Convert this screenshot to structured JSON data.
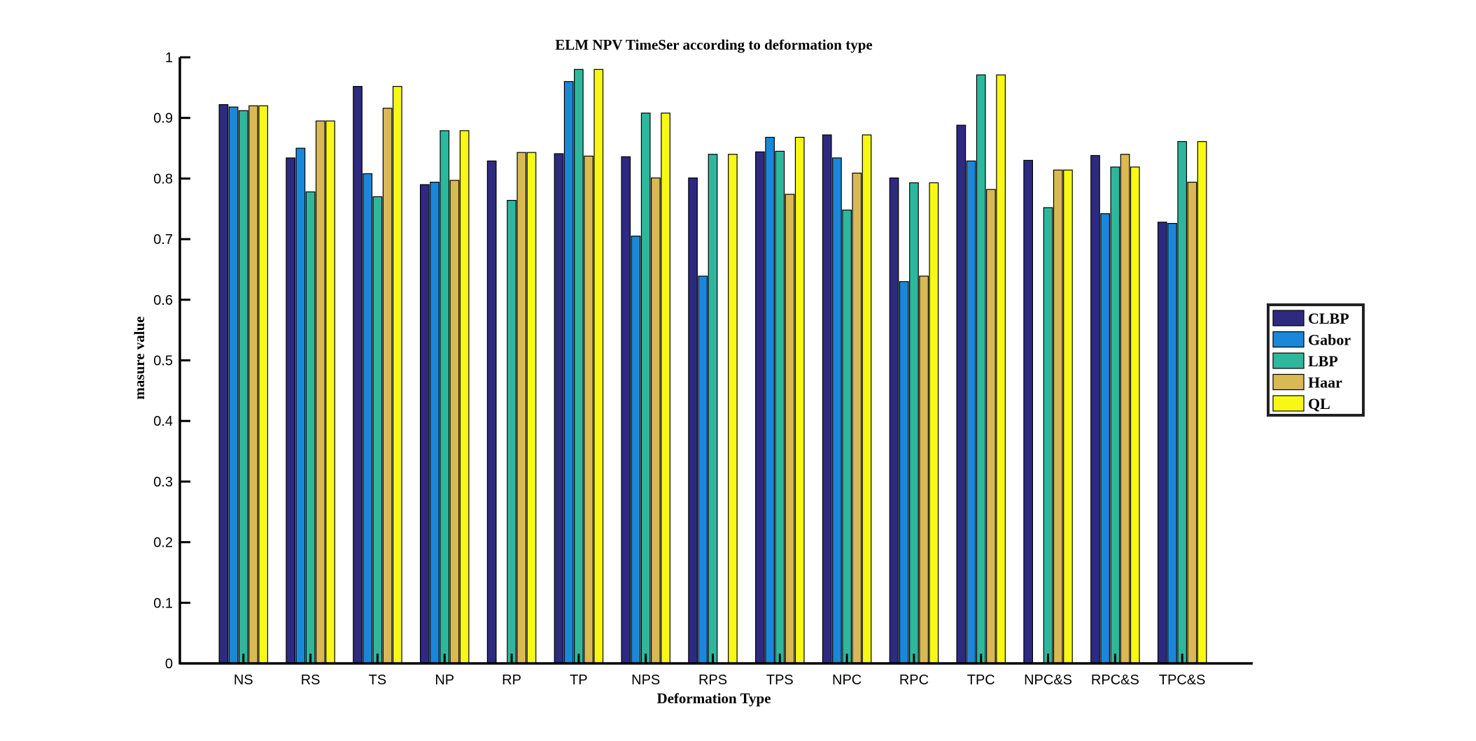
{
  "chart_data": {
    "type": "bar",
    "title": "ELM NPV TimeSer according to deformation type",
    "xlabel": "Deformation Type",
    "ylabel": "masure value",
    "ylim": [
      0,
      1
    ],
    "yticks": [
      0,
      0.1,
      0.2,
      0.3,
      0.4,
      0.5,
      0.6,
      0.7,
      0.8,
      0.9,
      1
    ],
    "ytick_labels": [
      "0",
      "0.1",
      "0.2",
      "0.3",
      "0.4",
      "0.5",
      "0.6",
      "0.7",
      "0.8",
      "0.9",
      "1"
    ],
    "grid": false,
    "legend_position": "right",
    "categories": [
      "NS",
      "RS",
      "TS",
      "NP",
      "RP",
      "TP",
      "NPS",
      "RPS",
      "TPS",
      "NPC",
      "RPC",
      "TPC",
      "NPC&S",
      "RPC&S",
      "TPC&S"
    ],
    "series": [
      {
        "name": "CLBP",
        "color": "#2e2a80",
        "values": [
          0.922,
          0.834,
          0.952,
          0.79,
          0.829,
          0.841,
          0.836,
          0.801,
          0.844,
          0.872,
          0.801,
          0.888,
          0.83,
          0.838,
          0.728
        ]
      },
      {
        "name": "Gabor",
        "color": "#1a87d8",
        "values": [
          0.918,
          0.85,
          0.808,
          0.794,
          0,
          0.96,
          0.705,
          0.639,
          0.868,
          0.834,
          0.63,
          0.829,
          0,
          0.742,
          0.726
        ]
      },
      {
        "name": "LBP",
        "color": "#2fb79d",
        "values": [
          0.912,
          0.778,
          0.77,
          0.879,
          0.764,
          0.98,
          0.908,
          0.84,
          0.845,
          0.748,
          0.793,
          0.971,
          0.752,
          0.819,
          0.861
        ]
      },
      {
        "name": "Haar",
        "color": "#d9b954",
        "values": [
          0.92,
          0.895,
          0.916,
          0.797,
          0.843,
          0.837,
          0.801,
          0,
          0.774,
          0.809,
          0.639,
          0.782,
          0.814,
          0.84,
          0.794
        ]
      },
      {
        "name": "QL",
        "color": "#f8f815",
        "values": [
          0.92,
          0.895,
          0.952,
          0.879,
          0.843,
          0.98,
          0.908,
          0.84,
          0.868,
          0.872,
          0.793,
          0.971,
          0.814,
          0.819,
          0.861
        ]
      }
    ]
  }
}
